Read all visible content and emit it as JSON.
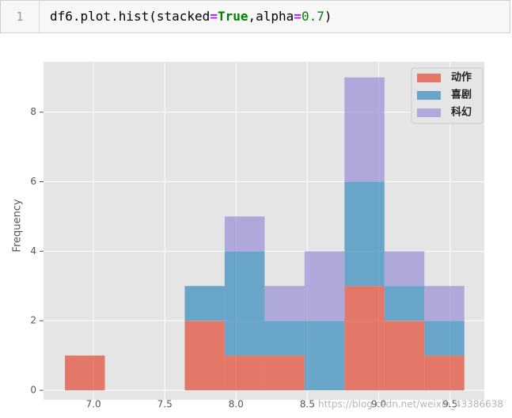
{
  "cell": {
    "prompt": "1",
    "code": [
      "df6.plot.hist",
      "(",
      "stacked",
      "=",
      "True",
      ",",
      "alpha",
      "=",
      "0.7",
      ")"
    ]
  },
  "chart_data": {
    "type": "histogram",
    "stacked": true,
    "alpha": 0.7,
    "y_label": "Frequency",
    "bins": [
      6.8,
      7.08,
      7.36,
      7.64,
      7.92,
      8.2,
      8.48,
      8.76,
      9.04,
      9.32,
      9.6
    ],
    "series": [
      {
        "name": "动作",
        "color": "#E24A33",
        "values": [
          1,
          0,
          0,
          2,
          1,
          1,
          0,
          3,
          2,
          1
        ]
      },
      {
        "name": "喜剧",
        "color": "#348ABD",
        "values": [
          0,
          0,
          0,
          1,
          3,
          1,
          2,
          3,
          1,
          1
        ]
      },
      {
        "name": "科幻",
        "color": "#988ED5",
        "values": [
          0,
          0,
          0,
          0,
          1,
          1,
          2,
          3,
          1,
          1
        ]
      }
    ],
    "xlim": [
      6.65,
      9.74
    ],
    "ylim": [
      0,
      9.45
    ],
    "xticks": [
      {
        "value": 7,
        "label": "7.0"
      },
      {
        "value": 7.5,
        "label": "7.5"
      },
      {
        "value": 8,
        "label": "8.0"
      },
      {
        "value": 8.5,
        "label": "8.5"
      },
      {
        "value": 9,
        "label": "9.0"
      },
      {
        "value": 9.5,
        "label": "9.5"
      }
    ],
    "yticks": [
      0,
      2,
      4,
      6,
      8
    ],
    "grid": true,
    "legend": "upper right",
    "watermark": "https://blog.csdn.net/weixin_43386638"
  }
}
